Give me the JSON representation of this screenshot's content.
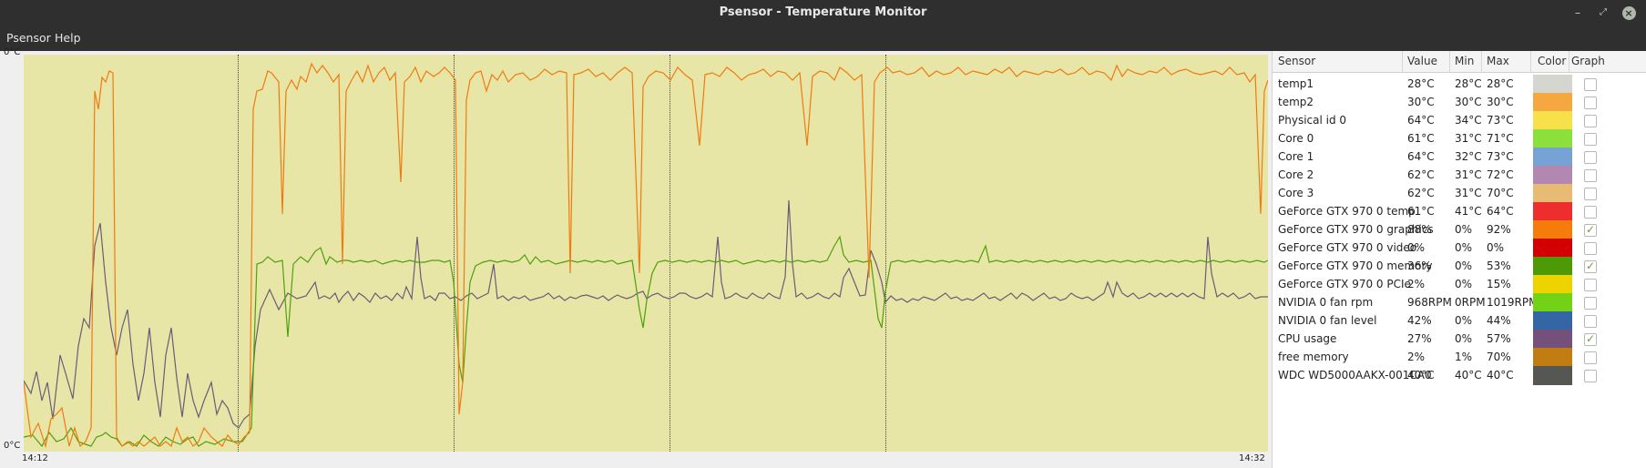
{
  "window": {
    "title": "Psensor - Temperature Monitor",
    "minimize_glyph": "–",
    "maximize_glyph": "⤢",
    "close_glyph": "×"
  },
  "menu": {
    "items": [
      "Psensor",
      "Help"
    ]
  },
  "graph": {
    "y_top_label": "0°C",
    "y_bottom_label": "0°C",
    "x_start_label": "14:12",
    "x_end_label": "14:32",
    "background_color": "#e8e6a6",
    "series_colors": {
      "gpu_graphics": "#f07a10",
      "gpu_memory": "#4ea00a",
      "cpu_usage": "#6c5b78"
    }
  },
  "table": {
    "headers": {
      "sensor": "Sensor",
      "value": "Value",
      "min": "Min",
      "max": "Max",
      "color": "Color",
      "graph": "Graph"
    },
    "rows": [
      {
        "sensor": "temp1",
        "value": "28°C",
        "min": "28°C",
        "max": "28°C",
        "color": "#d6d6d0",
        "graph": false
      },
      {
        "sensor": "temp2",
        "value": "30°C",
        "min": "30°C",
        "max": "30°C",
        "color": "#f6a840",
        "graph": false
      },
      {
        "sensor": "Physical id 0",
        "value": "64°C",
        "min": "34°C",
        "max": "73°C",
        "color": "#f8e04a",
        "graph": false
      },
      {
        "sensor": "Core 0",
        "value": "61°C",
        "min": "31°C",
        "max": "71°C",
        "color": "#8be03c",
        "graph": false
      },
      {
        "sensor": "Core 1",
        "value": "64°C",
        "min": "32°C",
        "max": "73°C",
        "color": "#76a2d6",
        "graph": false
      },
      {
        "sensor": "Core 2",
        "value": "62°C",
        "min": "31°C",
        "max": "72°C",
        "color": "#b288b0",
        "graph": false
      },
      {
        "sensor": "Core 3",
        "value": "62°C",
        "min": "31°C",
        "max": "70°C",
        "color": "#e8bb74",
        "graph": false
      },
      {
        "sensor": "GeForce GTX 970 0 temp",
        "value": "61°C",
        "min": "41°C",
        "max": "64°C",
        "color": "#ee2e2e",
        "graph": false
      },
      {
        "sensor": "GeForce GTX 970 0 graphics",
        "value": "88%",
        "min": "0%",
        "max": "92%",
        "color": "#f57b0a",
        "graph": true
      },
      {
        "sensor": "GeForce GTX 970 0 video",
        "value": "0%",
        "min": "0%",
        "max": "0%",
        "color": "#d20000",
        "graph": false
      },
      {
        "sensor": "GeForce GTX 970 0 memory",
        "value": "36%",
        "min": "0%",
        "max": "53%",
        "color": "#4e9a06",
        "graph": true
      },
      {
        "sensor": "GeForce GTX 970 0 PCIe",
        "value": "2%",
        "min": "0%",
        "max": "15%",
        "color": "#edd400",
        "graph": false
      },
      {
        "sensor": "NVIDIA 0 fan rpm",
        "value": "968RPM",
        "min": "0RPM",
        "max": "1019RPM",
        "color": "#73d216",
        "graph": false
      },
      {
        "sensor": "NVIDIA 0 fan level",
        "value": "42%",
        "min": "0%",
        "max": "44%",
        "color": "#3465a4",
        "graph": false
      },
      {
        "sensor": "CPU usage",
        "value": "27%",
        "min": "0%",
        "max": "57%",
        "color": "#75507b",
        "graph": true
      },
      {
        "sensor": "free memory",
        "value": "2%",
        "min": "1%",
        "max": "70%",
        "color": "#c17d11",
        "graph": false
      },
      {
        "sensor": "WDC WD5000AAKX-001CA0",
        "value": "40°C",
        "min": "40°C",
        "max": "40°C",
        "color": "#555753",
        "graph": false
      }
    ]
  }
}
